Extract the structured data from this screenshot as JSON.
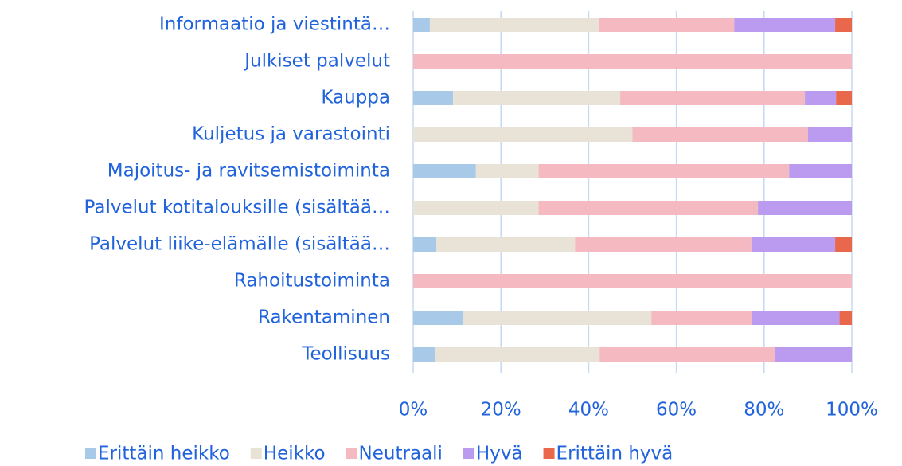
{
  "chart_data": {
    "type": "stacked_barh",
    "categories": [
      "Informaatio ja viestintä…",
      "Julkiset palvelut",
      "Kauppa",
      "Kuljetus ja varastointi",
      "Majoitus- ja ravitsemistoiminta",
      "Palvelut kotitalouksille (sisältää…",
      "Palvelut liike-elämälle (sisältää…",
      "Rahoitustoiminta",
      "Rakentaminen",
      "Teollisuus"
    ],
    "series": [
      {
        "name": "Erittäin heikko",
        "color": "#a9c9e9",
        "values": [
          3.8,
          0,
          9.1,
          0,
          14.3,
          0,
          5.3,
          0,
          11.4,
          5.0
        ]
      },
      {
        "name": "Heikko",
        "color": "#e9e3d7",
        "values": [
          38.5,
          0,
          38.1,
          50,
          14.3,
          28.6,
          31.6,
          0,
          42.9,
          37.5
        ]
      },
      {
        "name": "Neutraali",
        "color": "#f4b9c1",
        "values": [
          30.9,
          100,
          42.1,
          40,
          57.1,
          50,
          40.2,
          100,
          22.9,
          40.0
        ]
      },
      {
        "name": "Hyvä",
        "color": "#bb9bf0",
        "values": [
          23.0,
          0,
          7.1,
          10,
          14.3,
          21.4,
          19.1,
          0,
          20.0,
          17.5
        ]
      },
      {
        "name": "Erittäin hyvä",
        "color": "#e9674b",
        "values": [
          3.8,
          0,
          3.6,
          0,
          0,
          0,
          3.8,
          0,
          2.8,
          0
        ]
      }
    ],
    "xlim": [
      0,
      100
    ],
    "xticks": [
      {
        "value": 0,
        "label": "0%"
      },
      {
        "value": 20,
        "label": "20%"
      },
      {
        "value": 40,
        "label": "40%"
      },
      {
        "value": 60,
        "label": "60%"
      },
      {
        "value": 80,
        "label": "80%"
      },
      {
        "value": 100,
        "label": "100%"
      }
    ],
    "grid": true,
    "legend": "bottom"
  }
}
